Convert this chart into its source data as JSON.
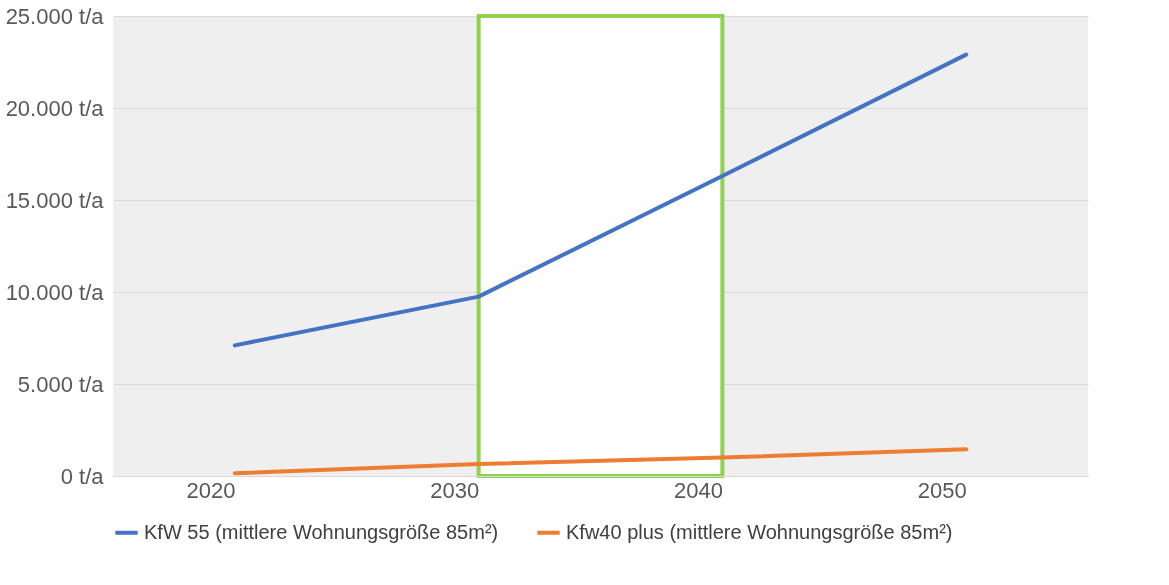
{
  "chart_data": {
    "type": "line",
    "categories": [
      "2020",
      "2030",
      "2040",
      "2050"
    ],
    "series": [
      {
        "name": "KfW 55 (mittlere Wohnungsgröße 85m²)",
        "color": "#4472c4",
        "values": [
          7100,
          9750,
          16300,
          22900
        ]
      },
      {
        "name": "Kfw40 plus (mittlere Wohnungsgröße 85m²)",
        "color": "#ed7d31",
        "values": [
          150,
          650,
          1000,
          1450
        ]
      }
    ],
    "ylim": [
      0,
      25000
    ],
    "yticks": [
      {
        "value": 0,
        "label": "0 t/a"
      },
      {
        "value": 5000,
        "label": "5.000 t/a"
      },
      {
        "value": 10000,
        "label": "10.000 t/a"
      },
      {
        "value": 15000,
        "label": "15.000 t/a"
      },
      {
        "value": 20000,
        "label": "20.000 t/a"
      },
      {
        "value": 25000,
        "label": "25.000 t/a"
      }
    ],
    "bands": [
      {
        "axis": "x",
        "from": "2030",
        "to": "2040",
        "color": "#92d050"
      }
    ],
    "grid": "y",
    "legend": "bottom",
    "line_style": "solid",
    "marker": "none"
  }
}
